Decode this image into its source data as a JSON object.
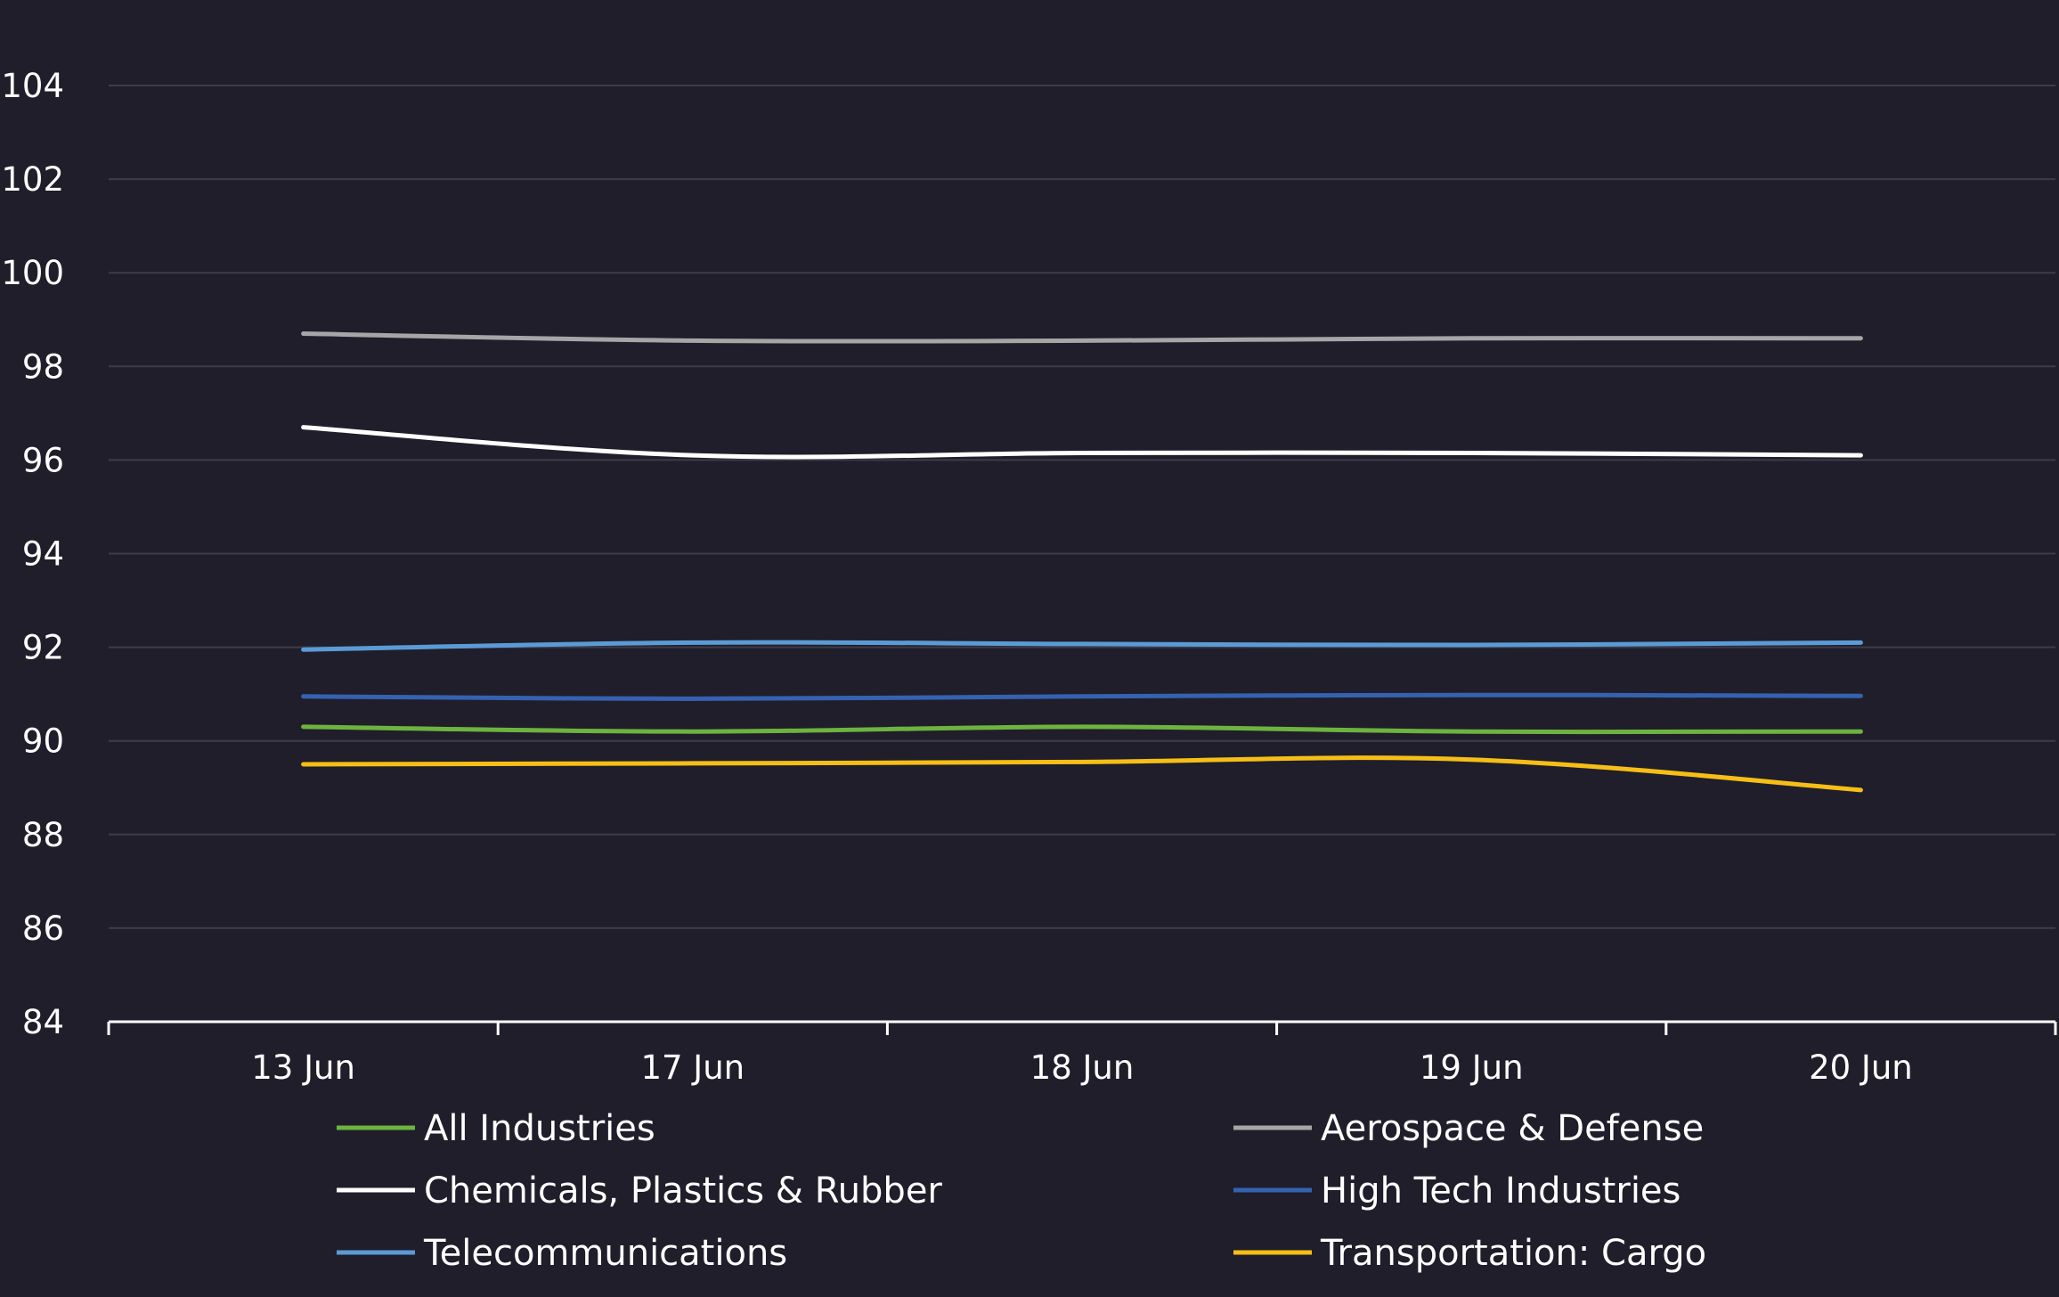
{
  "chart_data": {
    "type": "line",
    "title": "",
    "xlabel": "",
    "ylabel": "",
    "categories": [
      "13 Jun",
      "17 Jun",
      "18 Jun",
      "19 Jun",
      "20 Jun"
    ],
    "ylim": [
      84,
      104
    ],
    "yticks": [
      84,
      86,
      88,
      90,
      92,
      94,
      96,
      98,
      100,
      102,
      104
    ],
    "grid": true,
    "legend_position": "bottom",
    "series": [
      {
        "name": "All Industries",
        "color": "#6db33f",
        "values": [
          90.3,
          90.2,
          90.3,
          90.2,
          90.2
        ]
      },
      {
        "name": "Aerospace & Defense",
        "color": "#a6a6a6",
        "values": [
          98.7,
          98.55,
          98.55,
          98.6,
          98.6
        ]
      },
      {
        "name": "Chemicals, Plastics & Rubber",
        "color": "#ffffff",
        "values": [
          96.7,
          96.1,
          96.15,
          96.15,
          96.1
        ]
      },
      {
        "name": "High Tech Industries",
        "color": "#3562b0",
        "values": [
          90.95,
          90.9,
          90.95,
          90.98,
          90.96
        ]
      },
      {
        "name": "Telecommunications",
        "color": "#5b9bd5",
        "values": [
          91.95,
          92.1,
          92.07,
          92.05,
          92.1
        ]
      },
      {
        "name": "Transportation: Cargo",
        "color": "#f6be17",
        "values": [
          89.5,
          89.52,
          89.55,
          89.6,
          88.95
        ]
      }
    ]
  }
}
